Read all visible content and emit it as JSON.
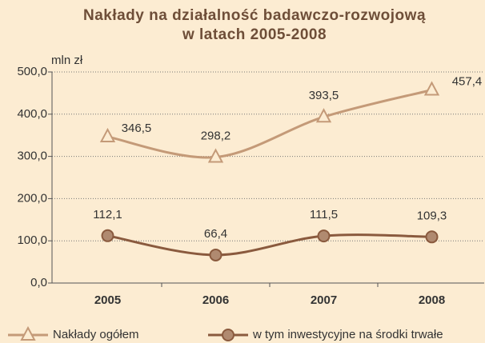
{
  "chart_data": {
    "type": "line",
    "title": [
      "Nakłady na działalność badawczo-rozwojową",
      "w latach 2005-2008"
    ],
    "y_label": "mln zł",
    "categories": [
      "2005",
      "2006",
      "2007",
      "2008"
    ],
    "series": [
      {
        "name": "Nakłady ogółem",
        "color": "#c49a78",
        "marker": "triangle",
        "values": [
          346.5,
          298.2,
          393.5,
          457.4
        ],
        "value_labels": [
          "346,5",
          "298,2",
          "393,5",
          "457,4"
        ]
      },
      {
        "name": "w tym inwestycyjne na środki trwałe",
        "color": "#8a5a3e",
        "marker": "circle",
        "values": [
          112.1,
          66.4,
          111.5,
          109.3
        ],
        "value_labels": [
          "112,1",
          "66,4",
          "111,5",
          "109,3"
        ]
      }
    ],
    "ylim": [
      0,
      500
    ],
    "yticks": [
      {
        "value": 0,
        "label": "0,0"
      },
      {
        "value": 100,
        "label": "100,0"
      },
      {
        "value": 200,
        "label": "200,0"
      },
      {
        "value": 300,
        "label": "300,0"
      },
      {
        "value": 400,
        "label": "400,0"
      },
      {
        "value": 500,
        "label": "500,0"
      }
    ],
    "grid": true
  }
}
